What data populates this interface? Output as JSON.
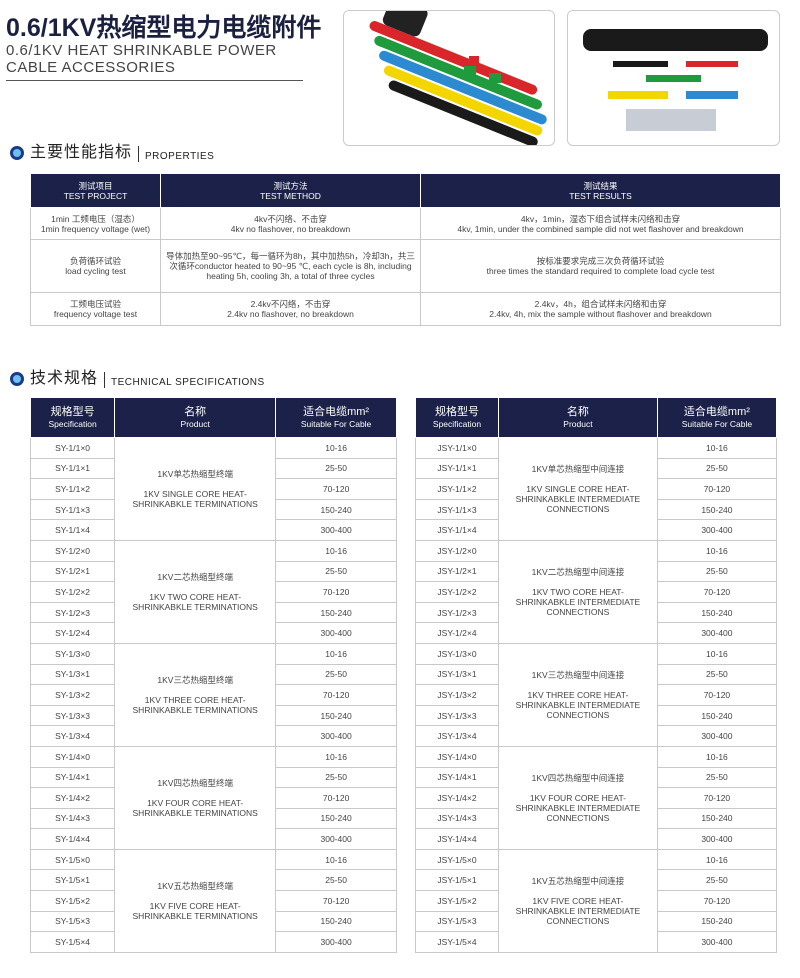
{
  "header": {
    "title": "0.6/1KV热缩型电力电缆附件",
    "subtitle_line1": "0.6/1KV HEAT SHRINKABLE POWER",
    "subtitle_line2": "CABLE ACCESSORIES"
  },
  "colors": {
    "header_bg": "#1b2148",
    "title": "#1b2040",
    "tube_colors": [
      "#d8262a",
      "#1f9a3c",
      "#2c8ad0",
      "#f3d500",
      "#1a1a1a"
    ]
  },
  "properties": {
    "title_cn": "主要性能指标",
    "title_en": "PROPERTIES",
    "headers": [
      {
        "cn": "测试项目",
        "en": "TEST PROJECT"
      },
      {
        "cn": "测试方法",
        "en": "TEST METHOD"
      },
      {
        "cn": "测试结果",
        "en": "TEST RESULTS"
      }
    ],
    "rows": [
      [
        "1min 工频电压（湿态）",
        "1min frequency voltage (wet)",
        "4kv不闪络、不击穿",
        "4kv no flashover, no breakdown",
        "4kv，1min，湿态下组合试样未闪络和击穿",
        "4kv, 1min, under the combined sample did not wet flashover and breakdown"
      ],
      [
        "负荷循环试验",
        "load cycling test",
        "导体加热至90~95℃，每一循环为8h，其中加热5h，冷却3h，共三次循环conductor heated to 90~95 ℃, each cycle is 8h, including heating 5h, cooling 3h, a total of three cycles",
        "",
        "按标准要求完成三次负荷循环试验",
        "three times the standard required to complete load cycle test"
      ],
      [
        "工频电压试验",
        "frequency voltage test",
        "2.4kv不闪络，不击穿",
        "2.4kv no flashover, no breakdown",
        "2.4kv，4h，组合试样未闪络和击穿",
        "2.4kv, 4h, mix the sample without flashover and breakdown"
      ]
    ]
  },
  "tech": {
    "title_cn": "技术规格",
    "title_en": "TECHNICAL SPECIFICATIONS",
    "headers": [
      {
        "cn": "规格型号",
        "en": "Specification"
      },
      {
        "cn": "名称",
        "en": "Product"
      },
      {
        "cn": "适合电缆mm²",
        "en": "Suitable For Cable"
      }
    ],
    "cables": [
      "10-16",
      "25-50",
      "70-120",
      "150-240",
      "300-400"
    ],
    "left": [
      {
        "specs": [
          "SY-1/1×0",
          "SY-1/1×1",
          "SY-1/1×2",
          "SY-1/1×3",
          "SY-1/1×4"
        ],
        "cn": "1KV单芯热缩型终端",
        "en": "1KV SINGLE CORE HEAT-SHRINKABKLE TERMINATIONS"
      },
      {
        "specs": [
          "SY-1/2×0",
          "SY-1/2×1",
          "SY-1/2×2",
          "SY-1/2×3",
          "SY-1/2×4"
        ],
        "cn": "1KV二芯热缩型终端",
        "en": "1KV TWO CORE HEAT-SHRINKABKLE TERMINATIONS"
      },
      {
        "specs": [
          "SY-1/3×0",
          "SY-1/3×1",
          "SY-1/3×2",
          "SY-1/3×3",
          "SY-1/3×4"
        ],
        "cn": "1KV三芯热缩型终端",
        "en": "1KV THREE CORE HEAT-SHRINKABKLE TERMINATIONS"
      },
      {
        "specs": [
          "SY-1/4×0",
          "SY-1/4×1",
          "SY-1/4×2",
          "SY-1/4×3",
          "SY-1/4×4"
        ],
        "cn": "1KV四芯热缩型终端",
        "en": "1KV FOUR CORE HEAT-SHRINKABKLE TERMINATIONS"
      },
      {
        "specs": [
          "SY-1/5×0",
          "SY-1/5×1",
          "SY-1/5×2",
          "SY-1/5×3",
          "SY-1/5×4"
        ],
        "cn": "1KV五芯热缩型终端",
        "en": "1KV FIVE CORE HEAT-SHRINKABKLE TERMINATIONS"
      }
    ],
    "right": [
      {
        "specs": [
          "JSY-1/1×0",
          "JSY-1/1×1",
          "JSY-1/1×2",
          "JSY-1/1×3",
          "JSY-1/1×4"
        ],
        "cn": "1KV单芯热缩型中间连接",
        "en": "1KV SINGLE CORE HEAT-SHRINKABKLE INTERMEDIATE CONNECTIONS"
      },
      {
        "specs": [
          "JSY-1/2×0",
          "JSY-1/2×1",
          "JSY-1/2×2",
          "JSY-1/2×3",
          "JSY-1/2×4"
        ],
        "cn": "1KV二芯热缩型中间连接",
        "en": "1KV TWO CORE HEAT-SHRINKABKLE INTERMEDIATE CONNECTIONS"
      },
      {
        "specs": [
          "JSY-1/3×0",
          "JSY-1/3×1",
          "JSY-1/3×2",
          "JSY-1/3×3",
          "JSY-1/3×4"
        ],
        "cn": "1KV三芯热缩型中间连接",
        "en": "1KV THREE CORE HEAT-SHRINKABKLE INTERMEDIATE CONNECTIONS"
      },
      {
        "specs": [
          "JSY-1/4×0",
          "JSY-1/4×1",
          "JSY-1/4×2",
          "JSY-1/4×3",
          "JSY-1/4×4"
        ],
        "cn": "1KV四芯热缩型中间连接",
        "en": "1KV FOUR CORE HEAT-SHRINKABKLE INTERMEDIATE CONNECTIONS"
      },
      {
        "specs": [
          "JSY-1/5×0",
          "JSY-1/5×1",
          "JSY-1/5×2",
          "JSY-1/5×3",
          "JSY-1/5×4"
        ],
        "cn": "1KV五芯热缩型中间连接",
        "en": "1KV FIVE CORE HEAT-SHRINKABKLE INTERMEDIATE CONNECTIONS"
      }
    ]
  }
}
